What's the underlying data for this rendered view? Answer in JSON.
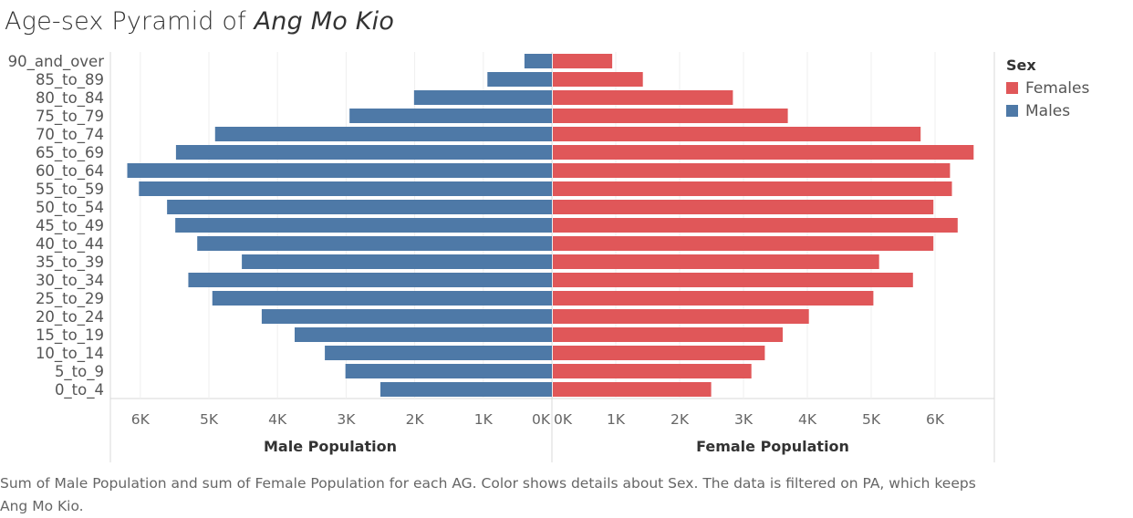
{
  "title": {
    "prefix": "Age-sex Pyramid of ",
    "place": "Ang Mo Kio"
  },
  "legend": {
    "title": "Sex",
    "items": [
      {
        "label": "Females",
        "color": "#e05759"
      },
      {
        "label": "Males",
        "color": "#4e79a7"
      }
    ]
  },
  "caption": "Sum of Male Population and sum of Female Population for each AG.  Color shows details about Sex. The data is filtered on PA, which keeps Ang Mo Kio.",
  "chart_data": {
    "type": "bar",
    "orientation": "horizontal",
    "categories": [
      "90_and_over",
      "85_to_89",
      "80_to_84",
      "75_to_79",
      "70_to_74",
      "65_to_69",
      "60_to_64",
      "55_to_59",
      "50_to_54",
      "45_to_49",
      "40_to_44",
      "35_to_39",
      "30_to_34",
      "25_to_29",
      "20_to_24",
      "15_to_19",
      "10_to_14",
      "5_to_9",
      "0_to_4"
    ],
    "male": {
      "xlabel": "Male Population",
      "color": "#4e79a7",
      "xlim": [
        0,
        6550
      ],
      "ticks": [
        6000,
        5000,
        4000,
        3000,
        2000,
        1000,
        0
      ],
      "tick_labels": [
        "6K",
        "5K",
        "4K",
        "3K",
        "2K",
        "1K",
        "0K"
      ],
      "values": [
        400,
        940,
        2010,
        2950,
        4910,
        5480,
        6190,
        6020,
        5610,
        5490,
        5170,
        4520,
        5300,
        4950,
        4230,
        3750,
        3310,
        3010,
        2500
      ]
    },
    "female": {
      "xlabel": "Female Population",
      "color": "#e05759",
      "xlim": [
        0,
        6900
      ],
      "ticks": [
        0,
        1000,
        2000,
        3000,
        4000,
        5000,
        6000
      ],
      "tick_labels": [
        "0K",
        "1K",
        "2K",
        "3K",
        "4K",
        "5K",
        "6K"
      ],
      "values": [
        930,
        1410,
        2820,
        3680,
        5760,
        6590,
        6220,
        6250,
        5960,
        6340,
        5960,
        5110,
        5640,
        5020,
        4010,
        3600,
        3320,
        3110,
        2480
      ]
    },
    "grid": true
  }
}
